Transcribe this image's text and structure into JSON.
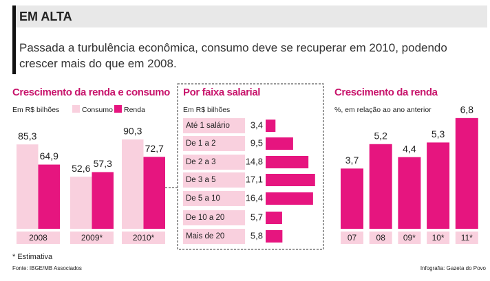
{
  "header": "EM ALTA",
  "subtitle": "Passada a turbulência econômica, consumo deve se recuperar em 2010, podendo crescer mais do que em 2008.",
  "chart_data": [
    {
      "type": "bar",
      "title": "Crescimento da renda e consumo",
      "unit": "Em R$ bilhões",
      "categories": [
        "2008",
        "2009*",
        "2010*"
      ],
      "series": [
        {
          "name": "Consumo",
          "color": "#f9d0de",
          "values": [
            85.3,
            52.6,
            90.3
          ],
          "value_labels": [
            "85,3",
            "52,6",
            "90,3"
          ]
        },
        {
          "name": "Renda",
          "color": "#e6157f",
          "values": [
            64.9,
            57.3,
            72.7
          ],
          "value_labels": [
            "64,9",
            "57,3",
            "72,7"
          ]
        }
      ]
    },
    {
      "type": "hbar",
      "title": "Por faixa salarial",
      "unit": "Em R$ bilhões",
      "color": "#e6157f",
      "categories": [
        "Até 1 salário",
        "De 1 a 2",
        "De 2 a 3",
        "De 3 a 5",
        "De 5 a 10",
        "De 10 a 20",
        "Mais de 20"
      ],
      "values": [
        3.4,
        9.5,
        14.8,
        17.1,
        16.4,
        5.7,
        5.8
      ],
      "value_labels": [
        "3,4",
        "9,5",
        "14,8",
        "17,1",
        "16,4",
        "5,7",
        "5,8"
      ]
    },
    {
      "type": "bar",
      "title": "Crescimento da renda",
      "unit": "%, em relação ao ano anterior",
      "color": "#e6157f",
      "categories": [
        "07",
        "08",
        "09*",
        "10*",
        "11*"
      ],
      "values": [
        3.7,
        5.2,
        4.4,
        5.3,
        6.8
      ],
      "value_labels": [
        "3,7",
        "5,2",
        "4,4",
        "5,3",
        "6,8"
      ]
    }
  ],
  "footnote": "* Estimativa",
  "source": "Fonte: IBGE/MB Associados",
  "credit": "Infografia: Gazeta do Povo"
}
